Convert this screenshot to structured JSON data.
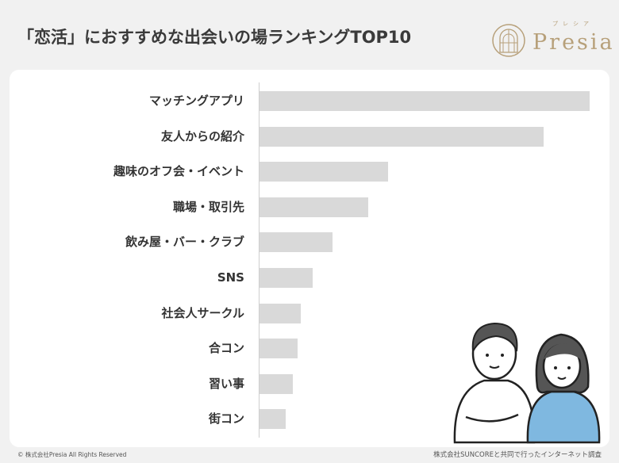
{
  "title": "「恋活」におすすめな出会いの場ランキングTOP10",
  "logo": {
    "word": "Presia",
    "kana": "プレシア",
    "color": "#b7a07a"
  },
  "chart_data": {
    "type": "bar",
    "orientation": "horizontal",
    "categories": [
      "マッチングアプリ",
      "友人からの紹介",
      "趣味のオフ会・イベント",
      "職場・取引先",
      "飲み屋・バー・クラブ",
      "SNS",
      "社会人サークル",
      "合コン",
      "習い事",
      "街コン"
    ],
    "values": [
      100,
      86,
      39,
      33,
      22,
      16,
      12.5,
      11.5,
      10,
      8
    ],
    "value_unit": "relative (% of top bar, no scale printed)",
    "bar_color": "#d9d9d9",
    "grid": false,
    "legend": "none"
  },
  "footer": {
    "copyright": "© 株式会社Presia All Rights Reserved",
    "source": "株式会社SUNCOREと共同で行ったインターネット調査"
  }
}
